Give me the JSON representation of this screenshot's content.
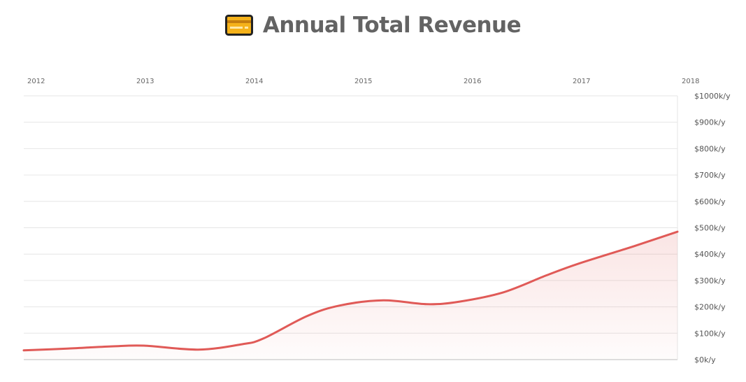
{
  "title": "Annual Total Revenue",
  "icon": "credit-card-icon",
  "colors": {
    "line": "#e05a57",
    "title": "#636363",
    "grid": "#e6e6e6",
    "card_fill": "#f5b21a",
    "card_border": "#222222"
  },
  "chart_data": {
    "type": "area",
    "title": "Annual Total Revenue",
    "xlabel": "",
    "ylabel": "",
    "x_ticks": [
      "2012",
      "2013",
      "2014",
      "2015",
      "2016",
      "2017",
      "2018"
    ],
    "y_ticks": [
      "$0k/y",
      "$100k/y",
      "$200k/y",
      "$300k/y",
      "$400k/y",
      "$500k/y",
      "$600k/y",
      "$700k/y",
      "$800k/y",
      "$900k/y",
      "$1000k/y"
    ],
    "ylim": [
      0,
      1000
    ],
    "xlim": [
      2012,
      2018
    ],
    "grid": true,
    "series": [
      {
        "x": [
          2011.9,
          2012.3,
          2012.7,
          2013.0,
          2013.5,
          2013.9,
          2014.1,
          2014.5,
          2014.8,
          2015.2,
          2015.6,
          2015.9,
          2016.3,
          2016.7,
          2017.0,
          2017.5,
          2017.9
        ],
        "values": [
          35,
          42,
          50,
          53,
          38,
          58,
          80,
          165,
          205,
          225,
          210,
          220,
          255,
          320,
          365,
          430,
          485
        ]
      }
    ]
  }
}
